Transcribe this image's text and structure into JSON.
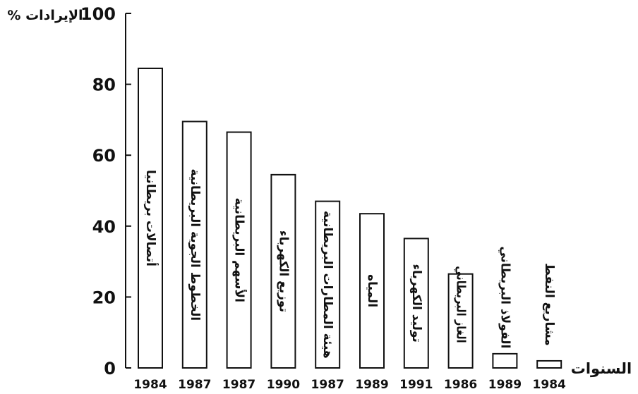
{
  "chart_data": {
    "type": "bar",
    "ylabel": "الإيرادات %",
    "xlabel": "السنوات",
    "ylim": [
      0,
      100
    ],
    "yticks": [
      "0",
      "20",
      "40",
      "60",
      "80",
      "100"
    ],
    "categories": [
      "أتصالات بريطانيا",
      "الخطوط الجوية البريطانية",
      "الأسهم البريطانية",
      "توزيع الكهرباء",
      "هيئة المطارات البريطانية",
      "المياه",
      "توليد الكهرباء",
      "الغاز البريطاني",
      "الفولاذ البريطاني",
      "مشاريع النفط"
    ],
    "years": [
      "1984",
      "1987",
      "1987",
      "1990",
      "1987",
      "1989",
      "1991",
      "1986",
      "1989",
      "1984"
    ],
    "values": [
      84.5,
      69.5,
      66.5,
      54.5,
      47,
      43.5,
      36.5,
      26.5,
      4,
      2
    ],
    "grid": false,
    "legend": "none",
    "colors": {
      "bar_fill": "#ffffff",
      "bar_stroke": "#111111",
      "axis": "#111111",
      "text": "#111111"
    }
  }
}
